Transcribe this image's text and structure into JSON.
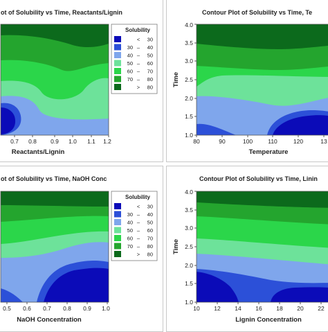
{
  "levels": {
    "colors": [
      "#0b0bb8",
      "#2c50d8",
      "#7fa6ec",
      "#6de29a",
      "#2bd64a",
      "#24a52e",
      "#0c6a1c"
    ],
    "bounds": [
      30,
      40,
      50,
      60,
      70,
      80
    ]
  },
  "legend": {
    "title": "Solubility",
    "rows": [
      {
        "sym": "<",
        "lo": "",
        "hi": "30"
      },
      {
        "sym": "–",
        "lo": "30",
        "hi": "40"
      },
      {
        "sym": "–",
        "lo": "40",
        "hi": "50"
      },
      {
        "sym": "–",
        "lo": "50",
        "hi": "60"
      },
      {
        "sym": "–",
        "lo": "60",
        "hi": "70"
      },
      {
        "sym": "–",
        "lo": "70",
        "hi": "80"
      },
      {
        "sym": ">",
        "lo": "",
        "hi": "80"
      }
    ]
  },
  "chart_data": [
    {
      "type": "heatmap",
      "panel": "tl",
      "title": "ot of Solubility vs Time, Reactants/Lignin",
      "xlabel": "Reactants/Lignin",
      "ylabel": "",
      "xticks": [
        "0.7",
        "0.8",
        "0.9",
        "1.0",
        "1.1",
        "1.2"
      ],
      "yticks": [],
      "legend": true
    },
    {
      "type": "heatmap",
      "panel": "tr",
      "title": "Contour Plot of Solubility vs Time, Te",
      "xlabel": "Temperature",
      "ylabel": "Time",
      "xticks": [
        "80",
        "90",
        "100",
        "110",
        "120",
        "13"
      ],
      "yticks": [
        "1.0",
        "1.5",
        "2.0",
        "2.5",
        "3.0",
        "3.5",
        "4.0"
      ],
      "legend": false
    },
    {
      "type": "heatmap",
      "panel": "bl",
      "title": "ot of Solubility vs Time, NaOH Conc",
      "xlabel": "NaOH Concentration",
      "ylabel": "",
      "xticks": [
        "0.5",
        "0.6",
        "0.7",
        "0.8",
        "0.9",
        "1.0"
      ],
      "yticks": [],
      "legend": true
    },
    {
      "type": "heatmap",
      "panel": "br",
      "title": "Contour Plot of Solubility vs Time, Linin",
      "xlabel": "Lignin Concentration",
      "ylabel": "Time",
      "xticks": [
        "10",
        "12",
        "14",
        "16",
        "18",
        "20",
        "22",
        "2"
      ],
      "yticks": [
        "1.0",
        "1.5",
        "2.0",
        "2.5",
        "3.0",
        "3.5",
        "4.0"
      ],
      "legend": false
    }
  ]
}
